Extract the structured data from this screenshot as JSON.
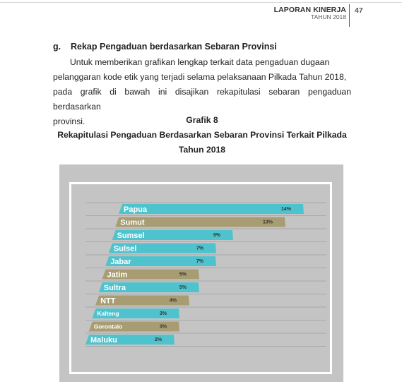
{
  "header": {
    "title": "LAPORAN KINERJA",
    "subtitle": "TAHUN 2018",
    "page_number": "47"
  },
  "section": {
    "letter": "g.",
    "heading": "Rekap Pengaduan berdasarkan Sebaran Provinsi",
    "paragraph_lines": [
      "Untuk memberikan grafikan lengkap terkait data pengaduan dugaan",
      "pelanggaran kode etik yang terjadi selama pelaksanaan Pilkada Tahun 2018,",
      "pada grafik di bawah ini disajikan rekapitulasi sebaran pengaduan berdasarkan",
      "provinsi."
    ]
  },
  "graph": {
    "number": "Grafik 8",
    "title_line1": "Rekapitulasi Pengaduan Berdasarkan Sebaran Provinsi Terkait Pilkada",
    "title_line2": "Tahun 2018"
  },
  "colors": {
    "teal": "#4fc3cd",
    "olive": "#a89d72",
    "chart_bg": "#c4c4c4"
  },
  "chart_data": {
    "type": "bar",
    "orientation": "horizontal",
    "categories": [
      "Papua",
      "Sumut",
      "Sumsel",
      "Sulsel",
      "Jabar",
      "Jatim",
      "Sultra",
      "NTT",
      "Kalteng",
      "Gorontalo",
      "Maluku"
    ],
    "values": [
      14,
      13,
      9,
      7,
      7,
      5,
      5,
      4,
      3,
      3,
      2
    ],
    "labels": [
      "14%",
      "13%",
      "9%",
      "7%",
      "7%",
      "5%",
      "5%",
      "4%",
      "3%",
      "3%",
      "2%"
    ],
    "unit": "%",
    "bar_colors": [
      "#4fc3cd",
      "#a89d72",
      "#4fc3cd",
      "#4fc3cd",
      "#4fc3cd",
      "#a89d72",
      "#4fc3cd",
      "#a89d72",
      "#4fc3cd",
      "#a89d72",
      "#4fc3cd"
    ],
    "grid": true,
    "legend": "none"
  }
}
